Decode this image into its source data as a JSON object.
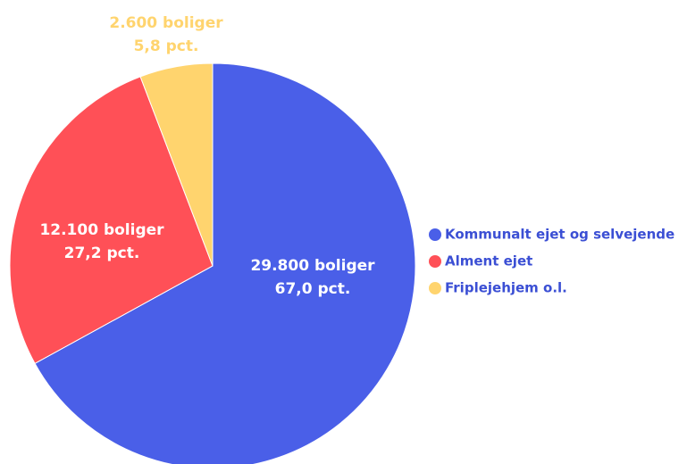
{
  "chart_data": {
    "type": "pie",
    "categories": [
      "Kommunalt ejet og selvejende",
      "Alment ejet",
      "Friplejehjem o.l."
    ],
    "values": [
      67.0,
      27.2,
      5.8
    ],
    "value_labels": [
      "67,0 pct.",
      "27,2 pct.",
      "5,8 pct."
    ],
    "counts": [
      29800,
      12100,
      2600
    ],
    "count_labels": [
      "29.800 boliger",
      "12.100 boliger",
      "2.600 boliger"
    ],
    "colors": [
      "#4a5fe8",
      "#ff5057",
      "#ffd46e"
    ],
    "legend": "right"
  }
}
